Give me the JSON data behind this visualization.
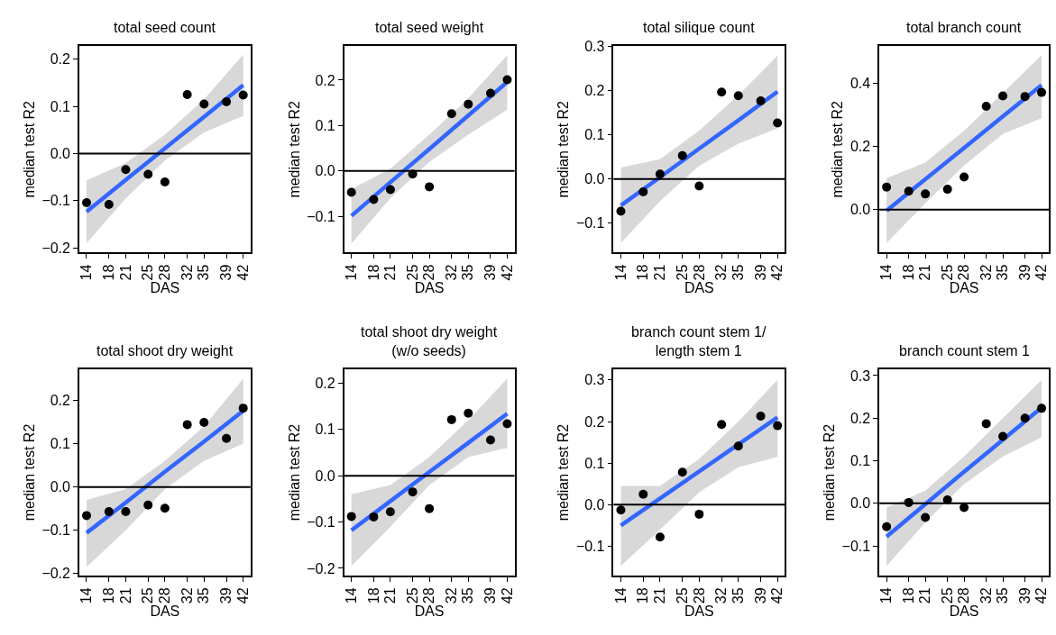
{
  "chart_data": [
    {
      "type": "scatter",
      "title": "total seed count",
      "xlabel": "DAS",
      "ylabel": "median test R2",
      "x": [
        14,
        18,
        21,
        25,
        28,
        32,
        35,
        39,
        42
      ],
      "xlim": [
        12.7,
        43.3
      ],
      "xticks": [
        14,
        18,
        21,
        25,
        28,
        32,
        35,
        39,
        42
      ],
      "ylim": [
        -0.21,
        0.228
      ],
      "yticks": [
        {
          "value": -0.2,
          "label": "−0.2"
        },
        {
          "value": -0.1,
          "label": "−0.1"
        },
        {
          "value": 0,
          "label": "0.0"
        },
        {
          "value": 0.1,
          "label": "0.1"
        },
        {
          "value": 0.2,
          "label": "0.2"
        }
      ],
      "grid": false,
      "ref_lines": [
        {
          "axis": "y",
          "value": 0,
          "color": "#000000"
        }
      ],
      "series": [
        {
          "marker": "circle",
          "color": "#000000",
          "values": [
            -0.104,
            -0.108,
            -0.034,
            -0.044,
            -0.06,
            0.125,
            0.105,
            0.11,
            0.124
          ]
        },
        {
          "type": "line",
          "marker": "none",
          "color": "#3366ff",
          "x": [
            14,
            21,
            28,
            35,
            42
          ],
          "values": [
            -0.123,
            -0.056,
            0.011,
            0.078,
            0.145
          ],
          "lower": [
            -0.19,
            -0.095,
            -0.015,
            0.045,
            0.08
          ],
          "upper": [
            -0.057,
            -0.02,
            0.04,
            0.115,
            0.21
          ]
        }
      ]
    },
    {
      "type": "scatter",
      "title": "total seed weight",
      "xlabel": "DAS",
      "ylabel": "median test R2",
      "x": [
        14,
        18,
        21,
        25,
        28,
        32,
        35,
        39,
        42
      ],
      "xlim": [
        12.7,
        43.3
      ],
      "xticks": [
        14,
        18,
        21,
        25,
        28,
        32,
        35,
        39,
        42
      ],
      "ylim": [
        -0.18,
        0.275
      ],
      "yticks": [
        {
          "value": -0.1,
          "label": "−0.1"
        },
        {
          "value": 0,
          "label": "0.0"
        },
        {
          "value": 0.1,
          "label": "0.1"
        },
        {
          "value": 0.2,
          "label": "0.2"
        }
      ],
      "grid": false,
      "ref_lines": [
        {
          "axis": "y",
          "value": 0,
          "color": "#000000"
        }
      ],
      "series": [
        {
          "marker": "circle",
          "color": "#000000",
          "values": [
            -0.047,
            -0.063,
            -0.041,
            -0.007,
            -0.035,
            0.126,
            0.147,
            0.171,
            0.201
          ]
        },
        {
          "type": "line",
          "marker": "none",
          "color": "#3366ff",
          "x": [
            14,
            21,
            28,
            35,
            42
          ],
          "values": [
            -0.099,
            -0.025,
            0.048,
            0.122,
            0.196
          ],
          "lower": [
            -0.16,
            -0.06,
            0.02,
            0.08,
            0.135
          ],
          "upper": [
            -0.04,
            0.005,
            0.08,
            0.16,
            0.255
          ]
        }
      ]
    },
    {
      "type": "scatter",
      "title": "total silique count",
      "xlabel": "DAS",
      "ylabel": "median test R2",
      "x": [
        14,
        18,
        21,
        25,
        28,
        32,
        35,
        39,
        42
      ],
      "xlim": [
        12.7,
        43.3
      ],
      "xticks": [
        14,
        18,
        21,
        25,
        28,
        32,
        35,
        39,
        42
      ],
      "ylim": [
        -0.167,
        0.3015
      ],
      "yticks": [
        {
          "value": -0.1,
          "label": "−0.1"
        },
        {
          "value": 0,
          "label": "0.0"
        },
        {
          "value": 0.1,
          "label": "0.1"
        },
        {
          "value": 0.2,
          "label": "0.2"
        },
        {
          "value": 0.3,
          "label": "0.3"
        }
      ],
      "grid": false,
      "ref_lines": [
        {
          "axis": "y",
          "value": 0,
          "color": "#000000"
        }
      ],
      "series": [
        {
          "marker": "circle",
          "color": "#000000",
          "values": [
            -0.073,
            -0.029,
            0.011,
            0.053,
            -0.016,
            0.197,
            0.189,
            0.177,
            0.127
          ]
        },
        {
          "type": "line",
          "marker": "none",
          "color": "#3366ff",
          "x": [
            14,
            21,
            28,
            35,
            42
          ],
          "values": [
            -0.06,
            0.004,
            0.069,
            0.133,
            0.198
          ],
          "lower": [
            -0.145,
            -0.05,
            0.03,
            0.08,
            0.115
          ],
          "upper": [
            0.026,
            0.045,
            0.11,
            0.19,
            0.28
          ]
        }
      ]
    },
    {
      "type": "scatter",
      "title": "total branch count",
      "xlabel": "DAS",
      "ylabel": "median test R2",
      "x": [
        14,
        18,
        21,
        25,
        28,
        32,
        35,
        39,
        42
      ],
      "xlim": [
        12.7,
        43.3
      ],
      "xticks": [
        14,
        18,
        21,
        25,
        28,
        32,
        35,
        39,
        42
      ],
      "ylim": [
        -0.136,
        0.519
      ],
      "yticks": [
        {
          "value": 0,
          "label": "0.0"
        },
        {
          "value": 0.2,
          "label": "0.2"
        },
        {
          "value": 0.4,
          "label": "0.4"
        }
      ],
      "grid": false,
      "ref_lines": [
        {
          "axis": "y",
          "value": 0,
          "color": "#000000"
        }
      ],
      "series": [
        {
          "marker": "circle",
          "color": "#000000",
          "values": [
            0.072,
            0.059,
            0.05,
            0.065,
            0.104,
            0.328,
            0.361,
            0.359,
            0.372
          ]
        },
        {
          "type": "line",
          "marker": "none",
          "color": "#3366ff",
          "x": [
            14,
            21,
            28,
            35,
            42
          ],
          "values": [
            -0.003,
            0.097,
            0.196,
            0.296,
            0.395
          ],
          "lower": [
            -0.105,
            0.02,
            0.14,
            0.24,
            0.29
          ],
          "upper": [
            0.1,
            0.15,
            0.25,
            0.37,
            0.49
          ]
        }
      ]
    },
    {
      "type": "scatter",
      "title": "total shoot dry weight",
      "xlabel": "DAS",
      "ylabel": "median test R2",
      "x": [
        14,
        18,
        21,
        25,
        28,
        32,
        35,
        39,
        42
      ],
      "xlim": [
        12.7,
        43.3
      ],
      "xticks": [
        14,
        18,
        21,
        25,
        28,
        32,
        35,
        39,
        42
      ],
      "ylim": [
        -0.205,
        0.272
      ],
      "yticks": [
        {
          "value": -0.2,
          "label": "−0.2"
        },
        {
          "value": -0.1,
          "label": "−0.1"
        },
        {
          "value": 0,
          "label": "0.0"
        },
        {
          "value": 0.1,
          "label": "0.1"
        },
        {
          "value": 0.2,
          "label": "0.2"
        }
      ],
      "grid": false,
      "ref_lines": [
        {
          "axis": "y",
          "value": 0,
          "color": "#000000"
        }
      ],
      "series": [
        {
          "marker": "circle",
          "color": "#000000",
          "values": [
            -0.066,
            -0.057,
            -0.057,
            -0.042,
            -0.049,
            0.144,
            0.149,
            0.112,
            0.182
          ]
        },
        {
          "type": "line",
          "marker": "none",
          "color": "#3366ff",
          "x": [
            14,
            21,
            28,
            35,
            42
          ],
          "values": [
            -0.106,
            -0.036,
            0.035,
            0.105,
            0.176
          ],
          "lower": [
            -0.185,
            -0.1,
            -0.005,
            0.06,
            0.1
          ],
          "upper": [
            -0.03,
            -0.005,
            0.06,
            0.14,
            0.25
          ]
        }
      ]
    },
    {
      "type": "scatter",
      "title": "total shoot dry weight\n(w/o seeds)",
      "xlabel": "DAS",
      "ylabel": "median test R2",
      "x": [
        14,
        18,
        21,
        25,
        28,
        32,
        35,
        39,
        42
      ],
      "xlim": [
        12.7,
        43.3
      ],
      "xticks": [
        14,
        18,
        21,
        25,
        28,
        32,
        35,
        39,
        42
      ],
      "ylim": [
        -0.216,
        0.23
      ],
      "yticks": [
        {
          "value": -0.2,
          "label": "−0.2"
        },
        {
          "value": -0.1,
          "label": "−0.1"
        },
        {
          "value": 0,
          "label": "0.0"
        },
        {
          "value": 0.1,
          "label": "0.1"
        },
        {
          "value": 0.2,
          "label": "0.2"
        }
      ],
      "grid": false,
      "ref_lines": [
        {
          "axis": "y",
          "value": 0,
          "color": "#000000"
        }
      ],
      "series": [
        {
          "marker": "circle",
          "color": "#000000",
          "values": [
            -0.088,
            -0.089,
            -0.078,
            -0.035,
            -0.071,
            0.121,
            0.135,
            0.077,
            0.112
          ]
        },
        {
          "type": "line",
          "marker": "none",
          "color": "#3366ff",
          "x": [
            14,
            21,
            28,
            35,
            42
          ],
          "values": [
            -0.118,
            -0.055,
            0.008,
            0.071,
            0.134
          ],
          "lower": [
            -0.195,
            -0.11,
            -0.02,
            0.04,
            0.06
          ],
          "upper": [
            -0.04,
            -0.02,
            0.04,
            0.12,
            0.21
          ]
        }
      ]
    },
    {
      "type": "scatter",
      "title": "branch count stem 1/\nlength stem 1",
      "xlabel": "DAS",
      "ylabel": "median test R2",
      "x": [
        14,
        18,
        21,
        25,
        28,
        32,
        35,
        39,
        42
      ],
      "xlim": [
        12.7,
        43.3
      ],
      "xticks": [
        14,
        18,
        21,
        25,
        28,
        32,
        35,
        39,
        42
      ],
      "ylim": [
        -0.171,
        0.326
      ],
      "yticks": [
        {
          "value": -0.1,
          "label": "−0.1"
        },
        {
          "value": 0,
          "label": "0.0"
        },
        {
          "value": 0.1,
          "label": "0.1"
        },
        {
          "value": 0.2,
          "label": "0.2"
        },
        {
          "value": 0.3,
          "label": "0.3"
        }
      ],
      "grid": false,
      "ref_lines": [
        {
          "axis": "y",
          "value": 0,
          "color": "#000000"
        }
      ],
      "series": [
        {
          "marker": "circle",
          "color": "#000000",
          "values": [
            -0.013,
            0.025,
            -0.078,
            0.078,
            -0.023,
            0.193,
            0.141,
            0.213,
            0.19
          ]
        },
        {
          "type": "line",
          "marker": "none",
          "color": "#3366ff",
          "x": [
            14,
            21,
            28,
            35,
            42
          ],
          "values": [
            -0.05,
            0.015,
            0.08,
            0.145,
            0.21
          ],
          "lower": [
            -0.147,
            -0.06,
            0.03,
            0.09,
            0.115
          ],
          "upper": [
            0.045,
            0.045,
            0.11,
            0.2,
            0.3
          ]
        }
      ]
    },
    {
      "type": "scatter",
      "title": "branch count stem 1",
      "xlabel": "DAS",
      "ylabel": "median test R2",
      "x": [
        14,
        18,
        21,
        25,
        28,
        32,
        35,
        39,
        42
      ],
      "xlim": [
        12.7,
        43.3
      ],
      "xticks": [
        14,
        18,
        21,
        25,
        28,
        32,
        35,
        39,
        42
      ],
      "ylim": [
        -0.17,
        0.315
      ],
      "yticks": [
        {
          "value": -0.1,
          "label": "−0.1"
        },
        {
          "value": 0,
          "label": "0.0"
        },
        {
          "value": 0.1,
          "label": "0.1"
        },
        {
          "value": 0.2,
          "label": "0.2"
        },
        {
          "value": 0.3,
          "label": "0.3"
        }
      ],
      "grid": false,
      "ref_lines": [
        {
          "axis": "y",
          "value": 0,
          "color": "#000000"
        }
      ],
      "series": [
        {
          "marker": "circle",
          "color": "#000000",
          "values": [
            -0.055,
            0.002,
            -0.033,
            0.008,
            -0.01,
            0.187,
            0.157,
            0.2,
            0.223
          ]
        },
        {
          "type": "line",
          "marker": "none",
          "color": "#3366ff",
          "x": [
            14,
            21,
            28,
            35,
            42
          ],
          "values": [
            -0.078,
            -0.002,
            0.074,
            0.149,
            0.225
          ],
          "lower": [
            -0.147,
            -0.045,
            0.045,
            0.11,
            0.155
          ],
          "upper": [
            -0.01,
            0.03,
            0.11,
            0.2,
            0.29
          ]
        }
      ]
    }
  ]
}
